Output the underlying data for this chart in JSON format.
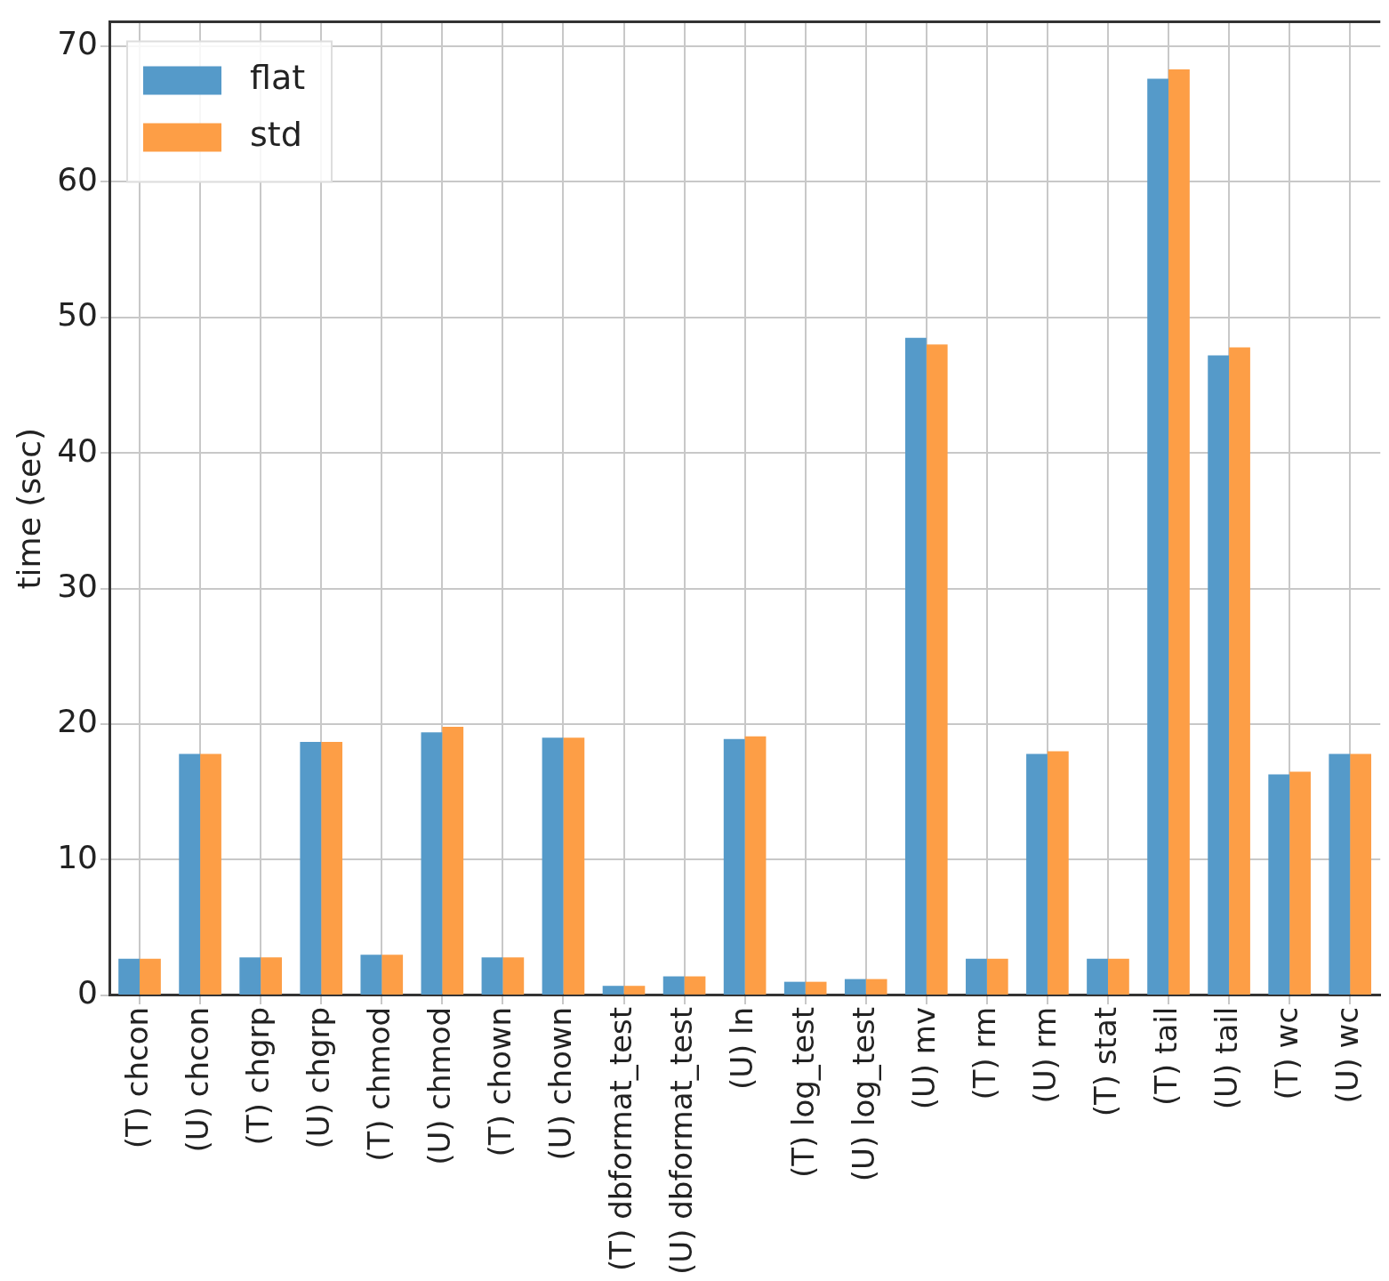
{
  "chart_data": {
    "type": "bar",
    "ylabel": "time (sec)",
    "categories": [
      "(T) chcon",
      "(U) chcon",
      "(T) chgrp",
      "(U) chgrp",
      "(T) chmod",
      "(U) chmod",
      "(T) chown",
      "(U) chown",
      "(T) dbformat_test",
      "(U) dbformat_test",
      "(U) ln",
      "(T) log_test",
      "(U) log_test",
      "(U) mv",
      "(T) rm",
      "(U) rm",
      "(T) stat",
      "(T) tail",
      "(U) tail",
      "(T) wc",
      "(U) wc"
    ],
    "series": [
      {
        "name": "flat",
        "color": "#559ac9",
        "values": [
          2.7,
          17.8,
          2.8,
          18.7,
          3.0,
          19.4,
          2.8,
          19.0,
          0.7,
          1.4,
          18.9,
          1.0,
          1.2,
          48.5,
          2.7,
          17.8,
          2.7,
          67.6,
          47.2,
          16.3,
          17.8
        ]
      },
      {
        "name": "std",
        "color": "#fd9e46",
        "values": [
          2.7,
          17.8,
          2.8,
          18.7,
          3.0,
          19.8,
          2.8,
          19.0,
          0.7,
          1.4,
          19.1,
          1.0,
          1.2,
          48.0,
          2.7,
          18.0,
          2.7,
          68.3,
          47.8,
          16.5,
          17.8
        ]
      }
    ],
    "ylim": [
      0,
      71.8
    ],
    "yticks": [
      0,
      10,
      20,
      30,
      40,
      50,
      60,
      70
    ],
    "grid": true,
    "legend": "top left"
  }
}
